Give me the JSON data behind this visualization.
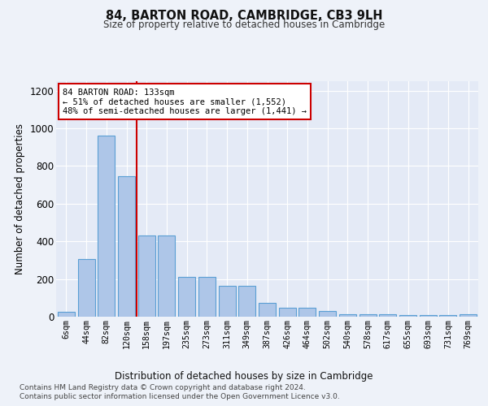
{
  "title": "84, BARTON ROAD, CAMBRIDGE, CB3 9LH",
  "subtitle": "Size of property relative to detached houses in Cambridge",
  "xlabel": "Distribution of detached houses by size in Cambridge",
  "ylabel": "Number of detached properties",
  "categories": [
    "6sqm",
    "44sqm",
    "82sqm",
    "120sqm",
    "158sqm",
    "197sqm",
    "235sqm",
    "273sqm",
    "311sqm",
    "349sqm",
    "387sqm",
    "426sqm",
    "464sqm",
    "502sqm",
    "540sqm",
    "578sqm",
    "617sqm",
    "655sqm",
    "693sqm",
    "731sqm",
    "769sqm"
  ],
  "values": [
    25,
    305,
    960,
    745,
    430,
    430,
    210,
    210,
    165,
    165,
    75,
    48,
    48,
    30,
    15,
    12,
    12,
    10,
    10,
    10,
    15
  ],
  "bar_color": "#aec6e8",
  "bar_edgecolor": "#5a9fd4",
  "bar_linewidth": 0.8,
  "annotation_text": "84 BARTON ROAD: 133sqm\n← 51% of detached houses are smaller (1,552)\n48% of semi-detached houses are larger (1,441) →",
  "annotation_box_color": "#ffffff",
  "annotation_box_edgecolor": "#cc0000",
  "red_line_x": 3.5,
  "red_line_color": "#cc0000",
  "ylim": [
    0,
    1250
  ],
  "yticks": [
    0,
    200,
    400,
    600,
    800,
    1000,
    1200
  ],
  "background_color": "#eef2f9",
  "plot_bg_color": "#e4eaf6",
  "grid_color": "#ffffff",
  "footer_line1": "Contains HM Land Registry data © Crown copyright and database right 2024.",
  "footer_line2": "Contains public sector information licensed under the Open Government Licence v3.0."
}
